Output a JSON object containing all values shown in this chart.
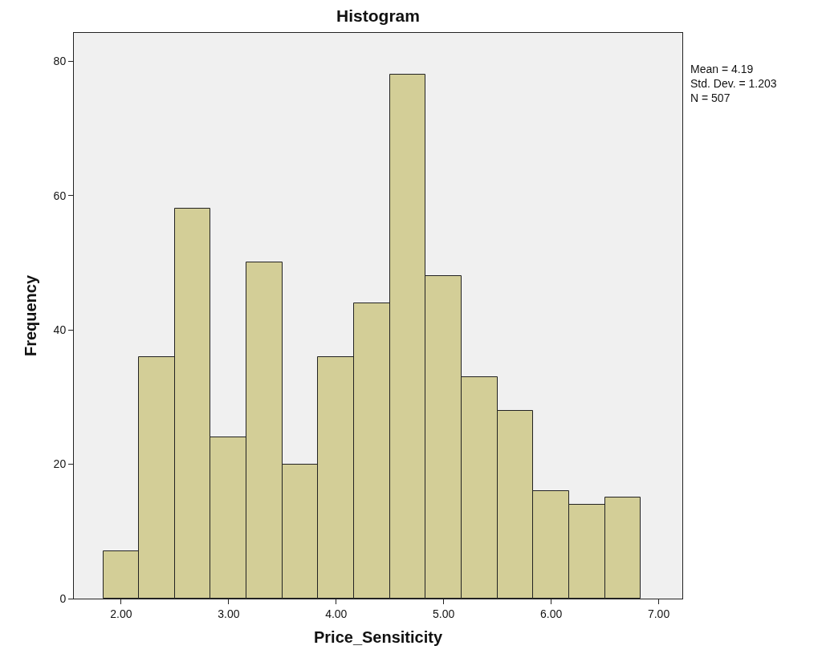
{
  "chart_data": {
    "type": "histogram",
    "title": "Histogram",
    "xlabel": "Price_Sensiticity",
    "ylabel": "Frequency",
    "bins": [
      1.833,
      2.167,
      2.5,
      2.833,
      3.167,
      3.5,
      3.833,
      4.167,
      4.5,
      4.833,
      5.167,
      5.5,
      5.833,
      6.167,
      6.5,
      6.833
    ],
    "values": [
      7,
      36,
      58,
      24,
      50,
      20,
      36,
      44,
      78,
      48,
      33,
      28,
      16,
      14,
      15
    ],
    "color": "#d3ce97",
    "xlim": [
      1.56,
      7.22
    ],
    "xticks": [
      {
        "value": 2,
        "label": "2.00"
      },
      {
        "value": 3,
        "label": "3.00"
      },
      {
        "value": 4,
        "label": "4.00"
      },
      {
        "value": 5,
        "label": "5.00"
      },
      {
        "value": 6,
        "label": "6.00"
      },
      {
        "value": 7,
        "label": "7.00"
      }
    ],
    "ylim": [
      0,
      84.2
    ],
    "yticks": [
      0,
      20,
      40,
      60,
      80
    ],
    "grid": false,
    "annotations": [
      "Mean = 4.19\nStd. Dev. = 1.203\nN = 507"
    ]
  }
}
